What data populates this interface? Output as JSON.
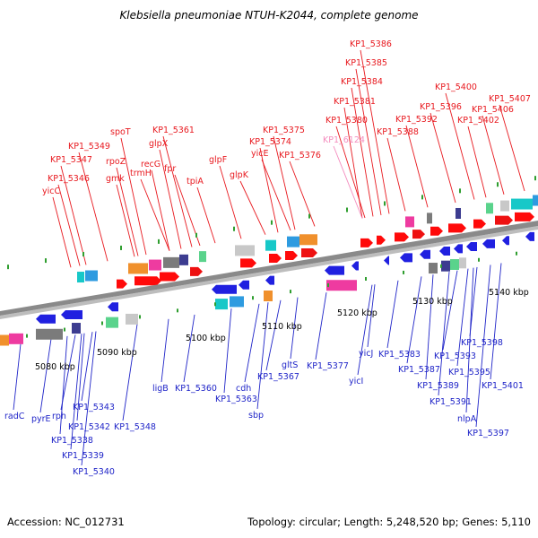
{
  "title": "Klebsiella pneumoniae NTUH-K2044, complete genome",
  "footer": {
    "accession": "Accession: NC_012731",
    "summary": "Topology: circular; Length: 5,248,520 bp; Genes: 5,110"
  },
  "colors": {
    "forward_label": "#e8191f",
    "reverse_label": "#1f24c8",
    "rna_label": "#f48cbe",
    "backbone": "#888888",
    "tick": "#2f9e2f"
  },
  "kbp_ticks": [
    "5080 kbp",
    "5090 kbp",
    "5100 kbp",
    "5110 kbp",
    "5120 kbp",
    "5130 kbp",
    "5140 kbp"
  ],
  "forward_genes": [
    "yicC",
    "KP1_5346",
    "KP1_5347",
    "KP1_5349",
    "gmk",
    "rpoZ",
    "spoT",
    "trmH",
    "recG",
    "glpX",
    "fpr",
    "KP1_5361",
    "tpiA",
    "glpF",
    "glpK",
    "yicE",
    "KP1_5374",
    "KP1_5375",
    "KP1_5376",
    "KP1_6124",
    "KP1_5380",
    "KP1_5381",
    "KP1_5384",
    "KP1_5385",
    "KP1_5386",
    "KP1_5388",
    "KP1_5392",
    "KP1_5396",
    "KP1_5400",
    "KP1_5402",
    "KP1_5406",
    "KP1_5407"
  ],
  "reverse_genes": [
    "radC",
    "pyrE",
    "rph",
    "KP1_5338",
    "KP1_5339",
    "KP1_5340",
    "KP1_5342",
    "KP1_5343",
    "KP1_5348",
    "ligB",
    "KP1_5360",
    "cdh",
    "KP1_5363",
    "sbp",
    "KP1_5367",
    "gltS",
    "KP1_5377",
    "yicI",
    "yicJ",
    "KP1_5383",
    "KP1_5387",
    "KP1_5389",
    "KP1_5391",
    "KP1_5393",
    "nlpA",
    "KP1_5395",
    "KP1_5397",
    "KP1_5398",
    "KP1_5401"
  ]
}
